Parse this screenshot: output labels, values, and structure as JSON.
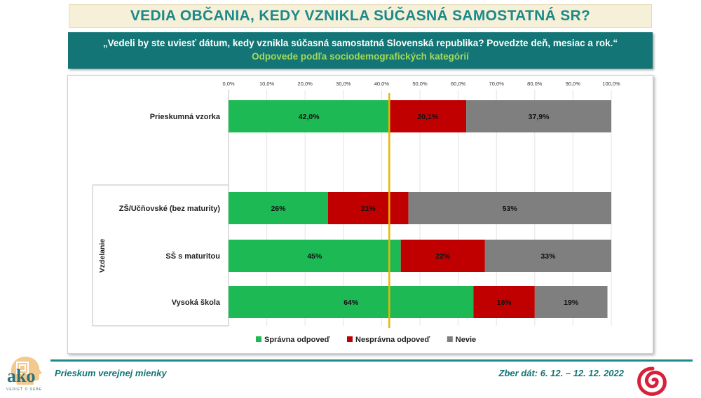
{
  "title": "VEDIA OBČANIA, KEDY VZNIKLA SÚČASNÁ SAMOSTATNÁ SR?",
  "question": "„Vedeli by ste uviesť dátum, kedy vznikla súčasná samostatná Slovenská republika? Povedzte deň, mesiac a rok.“",
  "subtitle": "Odpovede podľa sociodemografických kategórií",
  "footer": {
    "left": "Prieskum verejnej mienky",
    "right": "Zber dát: 6. 12. – 12. 12. 2022"
  },
  "logo": {
    "text": "ako",
    "tagline": "VEDIEŤ O SEBE"
  },
  "colors": {
    "correct": "#1db954",
    "incorrect": "#c00000",
    "dontknow": "#7f7f7f",
    "reference_line": "#e8b800",
    "teal": "#137575"
  },
  "chart_data": {
    "type": "bar",
    "orientation": "horizontal",
    "stacked": true,
    "xlim": [
      0,
      100
    ],
    "x_ticks": [
      "0,0%",
      "10,0%",
      "20,0%",
      "30,0%",
      "40,0%",
      "50,0%",
      "60,0%",
      "70,0%",
      "80,0%",
      "90,0%",
      "100,0%"
    ],
    "grid": true,
    "legend_position": "bottom",
    "group_label": "Vzdelanie",
    "reference_value": 42.0,
    "categories": [
      "Prieskumná vzorka",
      "ZŠ/Učňovské (bez maturity)",
      "SŠ s maturitou",
      "Vysoká škola"
    ],
    "series": [
      {
        "name": "Správna odpoveď",
        "values": [
          42.0,
          26,
          45,
          64
        ],
        "labels": [
          "42,0%",
          "26%",
          "45%",
          "64%"
        ]
      },
      {
        "name": "Nesprávna odpoveď",
        "values": [
          20.1,
          21,
          22,
          16
        ],
        "labels": [
          "20,1%",
          "21%",
          "22%",
          "16%"
        ]
      },
      {
        "name": "Nevie",
        "values": [
          37.9,
          53,
          33,
          19
        ],
        "labels": [
          "37,9%",
          "53%",
          "33%",
          "19%"
        ]
      }
    ]
  }
}
